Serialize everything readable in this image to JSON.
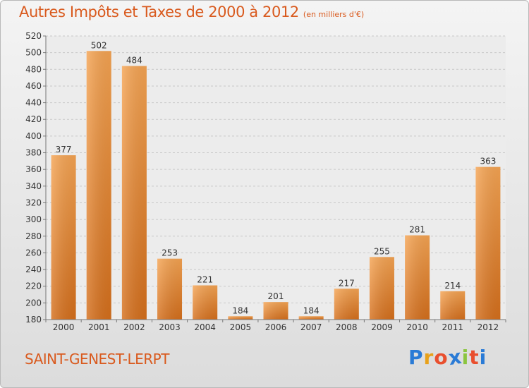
{
  "title": "Autres Impôts et Taxes de 2000 à 2012",
  "subtitle": "(en milliers d'€)",
  "commune": "SAINT-GENEST-LERPT",
  "logo": {
    "letters": [
      "P",
      "r",
      "o",
      "x",
      "i",
      "t",
      "i"
    ],
    "colors": [
      "#2a7bd6",
      "#e8a11a",
      "#e94f2e",
      "#2a7bd6",
      "#8bc53f",
      "#e94f2e",
      "#2a7bd6"
    ]
  },
  "colors": {
    "bar_light": "#f5a453",
    "bar_dark": "#d56f1c",
    "text": "#d95a1e"
  },
  "chart_data": {
    "type": "bar",
    "categories": [
      "2000",
      "2001",
      "2002",
      "2003",
      "2004",
      "2005",
      "2006",
      "2007",
      "2008",
      "2009",
      "2010",
      "2011",
      "2012"
    ],
    "values": [
      377,
      502,
      484,
      253,
      221,
      184,
      201,
      184,
      217,
      255,
      281,
      214,
      363
    ],
    "ylim": [
      180,
      520
    ],
    "yticks": [
      180,
      200,
      220,
      240,
      260,
      280,
      300,
      320,
      340,
      360,
      380,
      400,
      420,
      440,
      460,
      480,
      500,
      520
    ],
    "grid": true,
    "xlabel": "",
    "ylabel": ""
  }
}
